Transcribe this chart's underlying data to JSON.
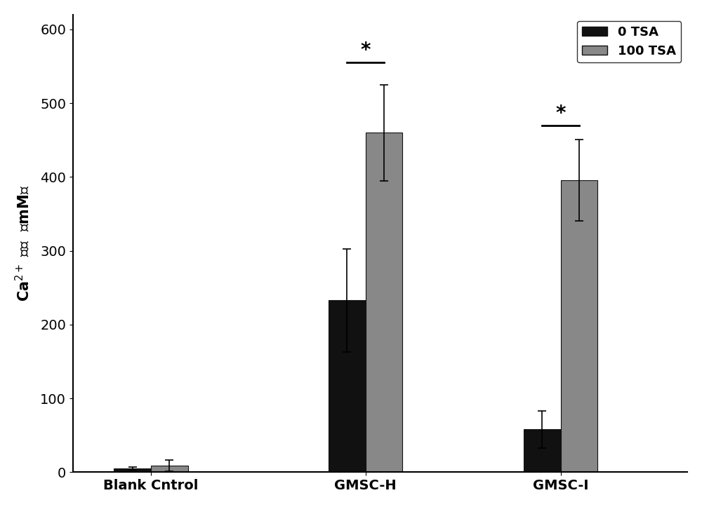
{
  "categories": [
    "Blank Cntrol",
    "GMSC-H",
    "GMSC-I"
  ],
  "values_0tsa": [
    5,
    233,
    58
  ],
  "values_100tsa": [
    9,
    460,
    396
  ],
  "errors_0tsa": [
    2,
    70,
    25
  ],
  "errors_100tsa": [
    8,
    65,
    55
  ],
  "bar_color_0tsa": "#111111",
  "bar_color_100tsa": "#888888",
  "ylabel_top": "（mM）",
  "ylabel_bottom": "Ca²⁺ 浓度",
  "ylim": [
    0,
    620
  ],
  "yticks": [
    0,
    100,
    200,
    300,
    400,
    500,
    600
  ],
  "legend_labels": [
    "0 TSA",
    "100 TSA"
  ],
  "bar_width": 0.38,
  "group_positions": [
    1.0,
    3.2,
    5.2
  ],
  "background_color": "#ffffff",
  "edge_color": "#111111",
  "label_fontsize": 15,
  "tick_fontsize": 14,
  "legend_fontsize": 13,
  "xlim": [
    0.2,
    6.5
  ]
}
